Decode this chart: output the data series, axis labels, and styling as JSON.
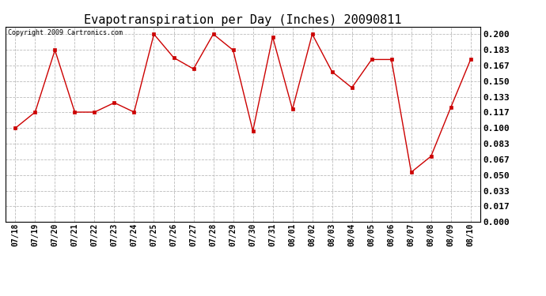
{
  "title": "Evapotranspiration per Day (Inches) 20090811",
  "copyright_text": "Copyright 2009 Cartronics.com",
  "x_labels": [
    "07/18",
    "07/19",
    "07/20",
    "07/21",
    "07/22",
    "07/23",
    "07/24",
    "07/25",
    "07/26",
    "07/27",
    "07/28",
    "07/29",
    "07/30",
    "07/31",
    "08/01",
    "08/02",
    "08/03",
    "08/04",
    "08/05",
    "08/06",
    "08/07",
    "08/08",
    "08/09",
    "08/10"
  ],
  "y_values": [
    0.1,
    0.117,
    0.183,
    0.117,
    0.117,
    0.127,
    0.117,
    0.2,
    0.175,
    0.163,
    0.2,
    0.183,
    0.097,
    0.197,
    0.12,
    0.2,
    0.16,
    0.143,
    0.173,
    0.173,
    0.053,
    0.07,
    0.122,
    0.173
  ],
  "line_color": "#cc0000",
  "marker": "s",
  "marker_size": 2.5,
  "bg_color": "#ffffff",
  "grid_color": "#bbbbbb",
  "y_ticks": [
    0.0,
    0.017,
    0.033,
    0.05,
    0.067,
    0.083,
    0.1,
    0.117,
    0.133,
    0.15,
    0.167,
    0.183,
    0.2
  ],
  "ylim": [
    0.0,
    0.208
  ],
  "title_fontsize": 11,
  "copyright_fontsize": 6,
  "tick_fontsize": 8,
  "xtick_fontsize": 7
}
